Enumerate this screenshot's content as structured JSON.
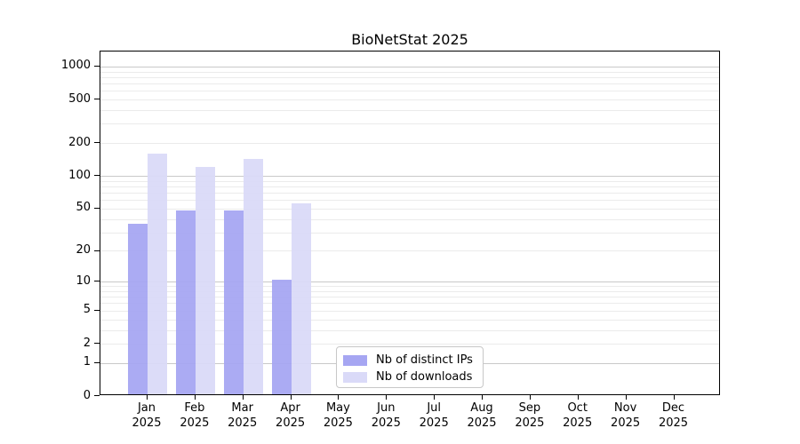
{
  "title": "BioNetStat 2025",
  "legend": {
    "items": [
      {
        "label": "Nb of distinct IPs"
      },
      {
        "label": "Nb of downloads"
      }
    ]
  },
  "colors": {
    "ips_bar": "#a6a6f2",
    "downloads_bar": "#dadaf8",
    "grid_major": "#c9c9c9",
    "grid_minor": "#ebebeb",
    "axis": "#000000",
    "legend_border": "#c8c8c8"
  },
  "chart_data": {
    "type": "bar",
    "title": "BioNetStat 2025",
    "categories": [
      "Jan",
      "Feb",
      "Mar",
      "Apr",
      "May",
      "Jun",
      "Jul",
      "Aug",
      "Sep",
      "Oct",
      "Nov",
      "Dec"
    ],
    "year": "2025",
    "series": [
      {
        "name": "Nb of distinct IPs",
        "color": "#a6a6f2",
        "values": [
          35,
          46,
          46,
          10,
          0,
          0,
          0,
          0,
          0,
          0,
          0,
          0
        ]
      },
      {
        "name": "Nb of downloads",
        "color": "#dadaf8",
        "values": [
          155,
          116,
          138,
          54,
          0,
          0,
          0,
          0,
          0,
          0,
          0,
          0
        ]
      }
    ],
    "xlabel": "",
    "ylabel": "",
    "yscale": "log10(value+1)",
    "yticks": [
      0,
      1,
      2,
      5,
      10,
      20,
      50,
      100,
      200,
      500,
      1000
    ],
    "ylim": [
      0,
      1370
    ],
    "grid": true,
    "legend_position": "bottom-center"
  }
}
